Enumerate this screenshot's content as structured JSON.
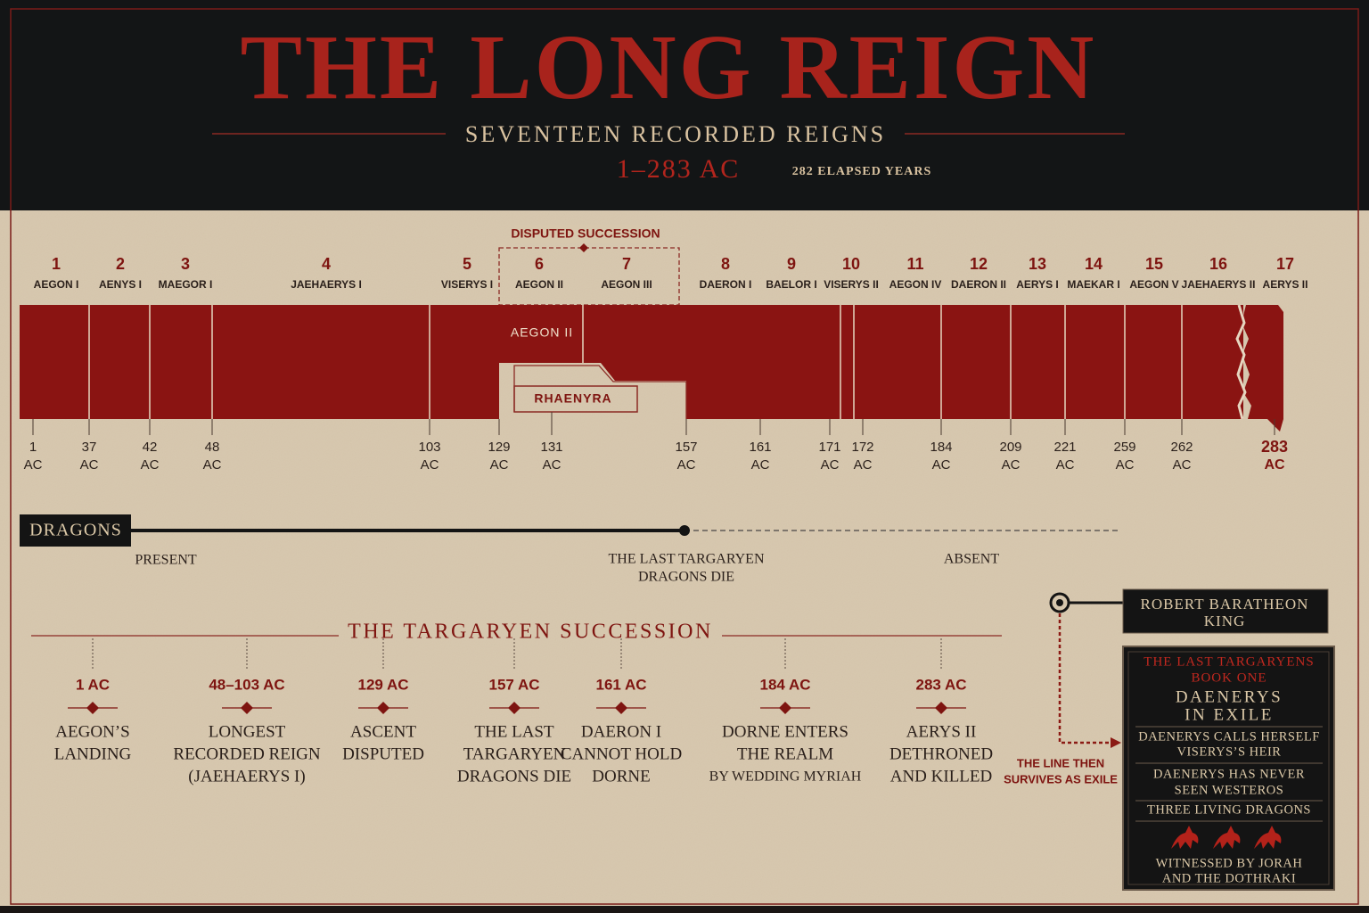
{
  "header": {
    "title": "THE LONG REIGN",
    "subtitle": "SEVENTEEN RECORDED REIGNS",
    "range": "1–283 AC",
    "elapsed": "282 ELAPSED YEARS"
  },
  "timeline": {
    "unit": "AC",
    "disputed_label": "DISPUTED SUCCESSION",
    "reigns": [
      {
        "number": 1,
        "name": "AEGON I"
      },
      {
        "number": 2,
        "name": "AENYS I"
      },
      {
        "number": 3,
        "name": "MAEGOR I"
      },
      {
        "number": 4,
        "name": "JAEHAERYS I"
      },
      {
        "number": 5,
        "name": "VISERYS I"
      },
      {
        "number": 6,
        "name": "AEGON II"
      },
      {
        "number": 7,
        "name": "AEGON III"
      },
      {
        "number": 8,
        "name": "DAERON I"
      },
      {
        "number": 9,
        "name": "BAELOR I"
      },
      {
        "number": 10,
        "name": "VISERYS II"
      },
      {
        "number": 11,
        "name": "AEGON IV"
      },
      {
        "number": 12,
        "name": "DAERON II"
      },
      {
        "number": 13,
        "name": "AERYS I"
      },
      {
        "number": 14,
        "name": "MAEKAR I"
      },
      {
        "number": 15,
        "name": "AEGON V"
      },
      {
        "number": 16,
        "name": "JAEHAERYS II"
      },
      {
        "number": 17,
        "name": "AERYS II"
      }
    ],
    "bar_labels": {
      "upper": "AEGON II",
      "lower": "RHAENYRA"
    },
    "ticks": [
      1,
      37,
      42,
      48,
      103,
      129,
      131,
      157,
      161,
      171,
      172,
      184,
      209,
      221,
      259,
      262,
      283
    ]
  },
  "dragons": {
    "label": "DRAGONS",
    "present": "PRESENT",
    "event": [
      "THE LAST TARGARYEN",
      "DRAGONS DIE"
    ],
    "absent": "ABSENT"
  },
  "succession": {
    "title": "THE TARGARYEN SUCCESSION",
    "events": [
      {
        "date": "1 AC",
        "lines": [
          "AEGON’S",
          "LANDING"
        ]
      },
      {
        "date": "48–103 AC",
        "lines": [
          "LONGEST",
          "RECORDED REIGN",
          "(JAEHAERYS I)"
        ]
      },
      {
        "date": "129 AC",
        "lines": [
          "ASCENT",
          "DISPUTED"
        ]
      },
      {
        "date": "157 AC",
        "lines": [
          "THE LAST",
          "TARGARYEN",
          "DRAGONS DIE"
        ]
      },
      {
        "date": "161 AC",
        "lines": [
          "DAERON I",
          "CANNOT HOLD",
          "DORNE"
        ]
      },
      {
        "date": "184 AC",
        "lines": [
          "DORNE ENTERS",
          "THE REALM",
          "BY WEDDING MYRIAH"
        ]
      },
      {
        "date": "283 AC",
        "lines": [
          "AERYS II",
          "DETHRONED",
          "AND KILLED"
        ]
      }
    ]
  },
  "aftermath": {
    "king": [
      "ROBERT BARATHEON",
      "KING"
    ],
    "exile_note": [
      "THE LINE THEN",
      "SURVIVES AS EXILE"
    ],
    "panel": {
      "heading": [
        "THE LAST TARGARYENS",
        "BOOK ONE"
      ],
      "title": [
        "DAENERYS",
        "IN EXILE"
      ],
      "facts": [
        [
          "DAENERYS CALLS HERSELF",
          "VISERYS’S HEIR"
        ],
        [
          "DAENERYS HAS NEVER",
          "SEEN WESTEROS"
        ],
        [
          "THREE LIVING DRAGONS"
        ]
      ],
      "footer": [
        "WITNESSED BY JORAH",
        "AND THE DOTHRAKI"
      ]
    }
  }
}
